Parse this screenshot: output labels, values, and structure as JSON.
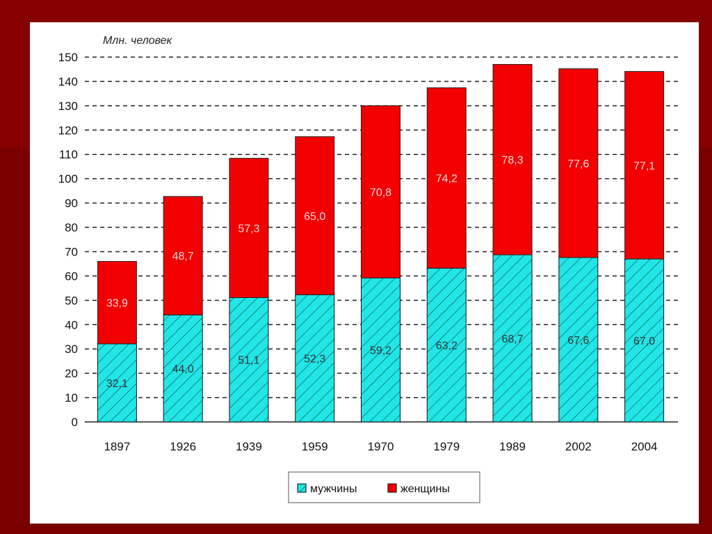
{
  "chart_data": {
    "type": "bar",
    "stacked": true,
    "ylabel": "Млн. человек",
    "categories": [
      "1897",
      "1926",
      "1939",
      "1959",
      "1970",
      "1979",
      "1989",
      "2002",
      "2004"
    ],
    "series": [
      {
        "name": "мужчины",
        "color": "#22e5e5",
        "values": [
          32.1,
          44.0,
          51.1,
          52.3,
          59.2,
          63.2,
          68.7,
          67.6,
          67.0
        ]
      },
      {
        "name": "женщины",
        "color": "#f20000",
        "values": [
          33.9,
          48.7,
          57.3,
          65.0,
          70.8,
          74.2,
          78.3,
          77.6,
          77.1
        ]
      }
    ],
    "value_labels": {
      "мужчины": [
        "32,1",
        "44,0",
        "51,1",
        "52,3",
        "59,2",
        "63,2",
        "68,7",
        "67,6",
        "67,0"
      ],
      "женщины": [
        "33,9",
        "48,7",
        "57,3",
        "65,0",
        "70,8",
        "74,2",
        "78,3",
        "77,6",
        "77,1"
      ]
    },
    "yticks": [
      "0",
      "10",
      "20",
      "30",
      "40",
      "50",
      "60",
      "70",
      "80",
      "90",
      "100",
      "110",
      "120",
      "130",
      "140",
      "150"
    ],
    "ylim": [
      0,
      150
    ],
    "grid": true,
    "legend": "bottom-center"
  }
}
